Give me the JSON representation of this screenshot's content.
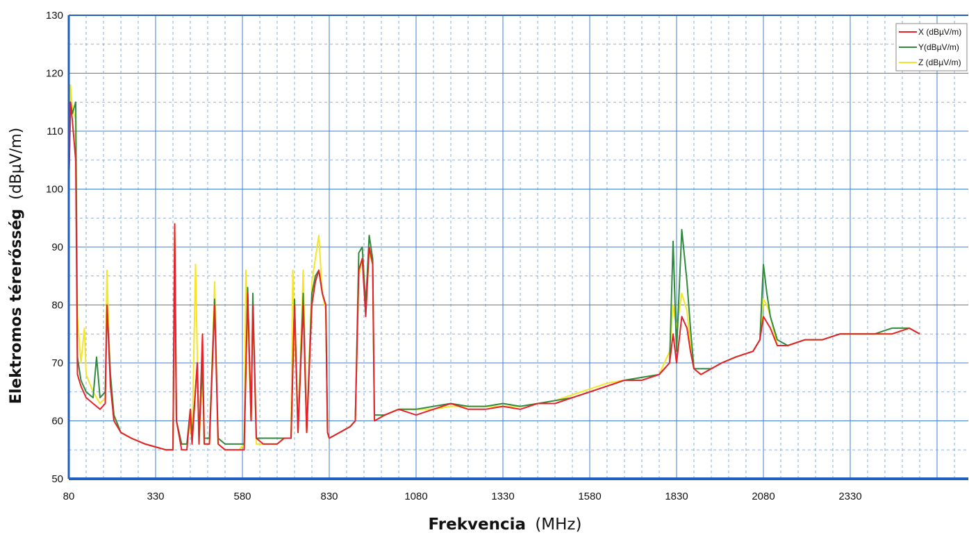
{
  "chart_data": {
    "type": "line",
    "xlabel_bold": "Frekvencia",
    "xlabel_unit": "(MHz)",
    "ylabel_bold": "Elektromos térerősség",
    "ylabel_unit": "(dBµV/m)",
    "xlim": [
      80,
      2670
    ],
    "ylim": [
      50,
      130
    ],
    "x_ticks": [
      80,
      330,
      580,
      830,
      1080,
      1330,
      1580,
      1830,
      2080,
      2330
    ],
    "y_ticks": [
      50,
      60,
      70,
      80,
      90,
      100,
      110,
      120,
      130
    ],
    "grid": true,
    "legend_position": "top-right",
    "series": [
      {
        "name": "X (dBµV/m)",
        "color": "#e8202a",
        "points": [
          [
            80,
            100
          ],
          [
            85,
            115
          ],
          [
            90,
            112
          ],
          [
            100,
            105
          ],
          [
            105,
            68
          ],
          [
            115,
            66
          ],
          [
            130,
            64
          ],
          [
            150,
            63
          ],
          [
            170,
            62
          ],
          [
            185,
            63
          ],
          [
            190,
            80
          ],
          [
            200,
            66
          ],
          [
            210,
            60
          ],
          [
            230,
            58
          ],
          [
            260,
            57
          ],
          [
            300,
            56
          ],
          [
            330,
            55.5
          ],
          [
            360,
            55
          ],
          [
            380,
            55
          ],
          [
            385,
            94
          ],
          [
            390,
            60
          ],
          [
            405,
            55
          ],
          [
            420,
            55
          ],
          [
            430,
            62
          ],
          [
            435,
            56
          ],
          [
            450,
            70
          ],
          [
            455,
            56
          ],
          [
            465,
            75
          ],
          [
            470,
            56
          ],
          [
            485,
            56
          ],
          [
            500,
            80
          ],
          [
            510,
            56
          ],
          [
            530,
            55
          ],
          [
            550,
            55
          ],
          [
            570,
            55
          ],
          [
            585,
            55
          ],
          [
            595,
            82
          ],
          [
            605,
            60
          ],
          [
            610,
            80
          ],
          [
            620,
            57
          ],
          [
            640,
            56
          ],
          [
            660,
            56
          ],
          [
            680,
            56
          ],
          [
            700,
            57
          ],
          [
            720,
            57
          ],
          [
            730,
            80
          ],
          [
            740,
            58
          ],
          [
            755,
            80
          ],
          [
            765,
            58
          ],
          [
            780,
            80
          ],
          [
            790,
            84
          ],
          [
            800,
            86
          ],
          [
            810,
            82
          ],
          [
            820,
            80
          ],
          [
            825,
            58
          ],
          [
            830,
            57
          ],
          [
            860,
            58
          ],
          [
            890,
            59
          ],
          [
            905,
            60
          ],
          [
            915,
            86
          ],
          [
            925,
            88
          ],
          [
            935,
            78
          ],
          [
            945,
            90
          ],
          [
            955,
            87
          ],
          [
            960,
            60
          ],
          [
            990,
            61
          ],
          [
            1030,
            62
          ],
          [
            1080,
            61
          ],
          [
            1130,
            62
          ],
          [
            1180,
            63
          ],
          [
            1230,
            62
          ],
          [
            1280,
            62
          ],
          [
            1330,
            62.5
          ],
          [
            1380,
            62
          ],
          [
            1430,
            63
          ],
          [
            1480,
            63
          ],
          [
            1530,
            64
          ],
          [
            1580,
            65
          ],
          [
            1630,
            66
          ],
          [
            1680,
            67
          ],
          [
            1730,
            67
          ],
          [
            1780,
            68
          ],
          [
            1810,
            70
          ],
          [
            1820,
            75
          ],
          [
            1830,
            70
          ],
          [
            1845,
            78
          ],
          [
            1860,
            76
          ],
          [
            1870,
            72
          ],
          [
            1880,
            69
          ],
          [
            1900,
            68
          ],
          [
            1930,
            69
          ],
          [
            1960,
            70
          ],
          [
            2000,
            71
          ],
          [
            2050,
            72
          ],
          [
            2070,
            74
          ],
          [
            2080,
            78
          ],
          [
            2090,
            77
          ],
          [
            2100,
            76
          ],
          [
            2120,
            73
          ],
          [
            2150,
            73
          ],
          [
            2200,
            74
          ],
          [
            2250,
            74
          ],
          [
            2300,
            75
          ],
          [
            2350,
            75
          ],
          [
            2400,
            75
          ],
          [
            2450,
            75
          ],
          [
            2500,
            76
          ],
          [
            2530,
            75
          ]
        ]
      },
      {
        "name": "Y(dBµV/m)",
        "color": "#2e8b3e",
        "points": [
          [
            80,
            100
          ],
          [
            85,
            115
          ],
          [
            90,
            113
          ],
          [
            100,
            115
          ],
          [
            105,
            71
          ],
          [
            115,
            67
          ],
          [
            130,
            65
          ],
          [
            150,
            64
          ],
          [
            160,
            71
          ],
          [
            170,
            64
          ],
          [
            185,
            65
          ],
          [
            190,
            80
          ],
          [
            200,
            68
          ],
          [
            210,
            61
          ],
          [
            230,
            58
          ],
          [
            260,
            57
          ],
          [
            300,
            56
          ],
          [
            330,
            55.5
          ],
          [
            360,
            55
          ],
          [
            380,
            55
          ],
          [
            385,
            90
          ],
          [
            390,
            60
          ],
          [
            405,
            56
          ],
          [
            420,
            56
          ],
          [
            430,
            62
          ],
          [
            435,
            57
          ],
          [
            450,
            70
          ],
          [
            455,
            57
          ],
          [
            465,
            70
          ],
          [
            470,
            57
          ],
          [
            485,
            57
          ],
          [
            500,
            81
          ],
          [
            510,
            57
          ],
          [
            530,
            56
          ],
          [
            550,
            56
          ],
          [
            570,
            56
          ],
          [
            585,
            56
          ],
          [
            595,
            83
          ],
          [
            605,
            60
          ],
          [
            610,
            82
          ],
          [
            620,
            57
          ],
          [
            640,
            57
          ],
          [
            660,
            57
          ],
          [
            680,
            57
          ],
          [
            700,
            57
          ],
          [
            720,
            57
          ],
          [
            730,
            81
          ],
          [
            740,
            58
          ],
          [
            755,
            82
          ],
          [
            765,
            58
          ],
          [
            780,
            82
          ],
          [
            790,
            85
          ],
          [
            800,
            86
          ],
          [
            810,
            82
          ],
          [
            820,
            80
          ],
          [
            825,
            58
          ],
          [
            830,
            57
          ],
          [
            860,
            58
          ],
          [
            890,
            59
          ],
          [
            905,
            60
          ],
          [
            915,
            89
          ],
          [
            925,
            90
          ],
          [
            935,
            80
          ],
          [
            945,
            92
          ],
          [
            955,
            88
          ],
          [
            960,
            61
          ],
          [
            990,
            61
          ],
          [
            1030,
            62
          ],
          [
            1080,
            62
          ],
          [
            1130,
            62.5
          ],
          [
            1180,
            63
          ],
          [
            1230,
            62.5
          ],
          [
            1280,
            62.5
          ],
          [
            1330,
            63
          ],
          [
            1380,
            62.5
          ],
          [
            1430,
            63
          ],
          [
            1480,
            63.5
          ],
          [
            1530,
            64
          ],
          [
            1580,
            65
          ],
          [
            1630,
            66
          ],
          [
            1680,
            67
          ],
          [
            1730,
            67.5
          ],
          [
            1780,
            68
          ],
          [
            1810,
            70
          ],
          [
            1820,
            91
          ],
          [
            1830,
            72
          ],
          [
            1845,
            93
          ],
          [
            1860,
            84
          ],
          [
            1870,
            76
          ],
          [
            1880,
            69
          ],
          [
            1900,
            69
          ],
          [
            1930,
            69
          ],
          [
            1960,
            70
          ],
          [
            2000,
            71
          ],
          [
            2050,
            72
          ],
          [
            2070,
            74
          ],
          [
            2080,
            87
          ],
          [
            2090,
            82
          ],
          [
            2100,
            78
          ],
          [
            2120,
            74
          ],
          [
            2150,
            73
          ],
          [
            2200,
            74
          ],
          [
            2250,
            74
          ],
          [
            2300,
            75
          ],
          [
            2350,
            75
          ],
          [
            2400,
            75
          ],
          [
            2450,
            76
          ],
          [
            2500,
            76
          ],
          [
            2530,
            75
          ]
        ]
      },
      {
        "name": "Z (dBµV/m)",
        "color": "#f5e625",
        "points": [
          [
            80,
            100
          ],
          [
            85,
            118
          ],
          [
            90,
            114
          ],
          [
            100,
            112
          ],
          [
            105,
            78
          ],
          [
            115,
            70
          ],
          [
            125,
            76
          ],
          [
            130,
            68
          ],
          [
            150,
            65
          ],
          [
            170,
            63
          ],
          [
            185,
            64
          ],
          [
            190,
            86
          ],
          [
            200,
            66
          ],
          [
            210,
            61
          ],
          [
            230,
            58
          ],
          [
            260,
            57
          ],
          [
            300,
            56
          ],
          [
            330,
            55.5
          ],
          [
            360,
            55
          ],
          [
            380,
            55
          ],
          [
            385,
            94
          ],
          [
            390,
            60
          ],
          [
            405,
            56
          ],
          [
            420,
            56
          ],
          [
            430,
            60
          ],
          [
            435,
            56
          ],
          [
            445,
            87
          ],
          [
            455,
            56
          ],
          [
            465,
            68
          ],
          [
            470,
            56
          ],
          [
            485,
            56
          ],
          [
            500,
            84
          ],
          [
            510,
            56
          ],
          [
            530,
            55
          ],
          [
            550,
            55
          ],
          [
            570,
            55
          ],
          [
            585,
            56
          ],
          [
            590,
            86
          ],
          [
            605,
            60
          ],
          [
            610,
            80
          ],
          [
            620,
            56
          ],
          [
            640,
            56
          ],
          [
            660,
            56
          ],
          [
            680,
            56
          ],
          [
            700,
            57
          ],
          [
            720,
            57
          ],
          [
            725,
            86
          ],
          [
            740,
            58
          ],
          [
            755,
            86
          ],
          [
            765,
            58
          ],
          [
            780,
            84
          ],
          [
            790,
            88
          ],
          [
            800,
            92
          ],
          [
            810,
            82
          ],
          [
            820,
            79
          ],
          [
            825,
            58
          ],
          [
            830,
            57
          ],
          [
            860,
            58
          ],
          [
            890,
            59
          ],
          [
            905,
            60
          ],
          [
            915,
            85
          ],
          [
            925,
            88
          ],
          [
            935,
            79
          ],
          [
            945,
            89
          ],
          [
            955,
            87
          ],
          [
            960,
            60
          ],
          [
            990,
            61
          ],
          [
            1030,
            62
          ],
          [
            1080,
            62
          ],
          [
            1130,
            62
          ],
          [
            1180,
            62.5
          ],
          [
            1230,
            62.5
          ],
          [
            1280,
            62.5
          ],
          [
            1330,
            62.5
          ],
          [
            1380,
            62.5
          ],
          [
            1430,
            63
          ],
          [
            1480,
            63.5
          ],
          [
            1530,
            64.5
          ],
          [
            1580,
            65.5
          ],
          [
            1630,
            66.5
          ],
          [
            1680,
            67
          ],
          [
            1730,
            67.5
          ],
          [
            1780,
            68
          ],
          [
            1810,
            72
          ],
          [
            1820,
            80
          ],
          [
            1830,
            76
          ],
          [
            1845,
            82
          ],
          [
            1860,
            79
          ],
          [
            1870,
            73
          ],
          [
            1880,
            69
          ],
          [
            1900,
            68
          ],
          [
            1930,
            69
          ],
          [
            1960,
            70
          ],
          [
            2000,
            71
          ],
          [
            2050,
            72
          ],
          [
            2070,
            74
          ],
          [
            2080,
            81
          ],
          [
            2090,
            80
          ],
          [
            2100,
            78
          ],
          [
            2120,
            73
          ],
          [
            2150,
            73
          ],
          [
            2200,
            74
          ],
          [
            2250,
            74
          ],
          [
            2300,
            75
          ],
          [
            2350,
            75
          ],
          [
            2400,
            75
          ],
          [
            2450,
            75
          ],
          [
            2500,
            76
          ],
          [
            2530,
            75
          ]
        ]
      }
    ]
  }
}
